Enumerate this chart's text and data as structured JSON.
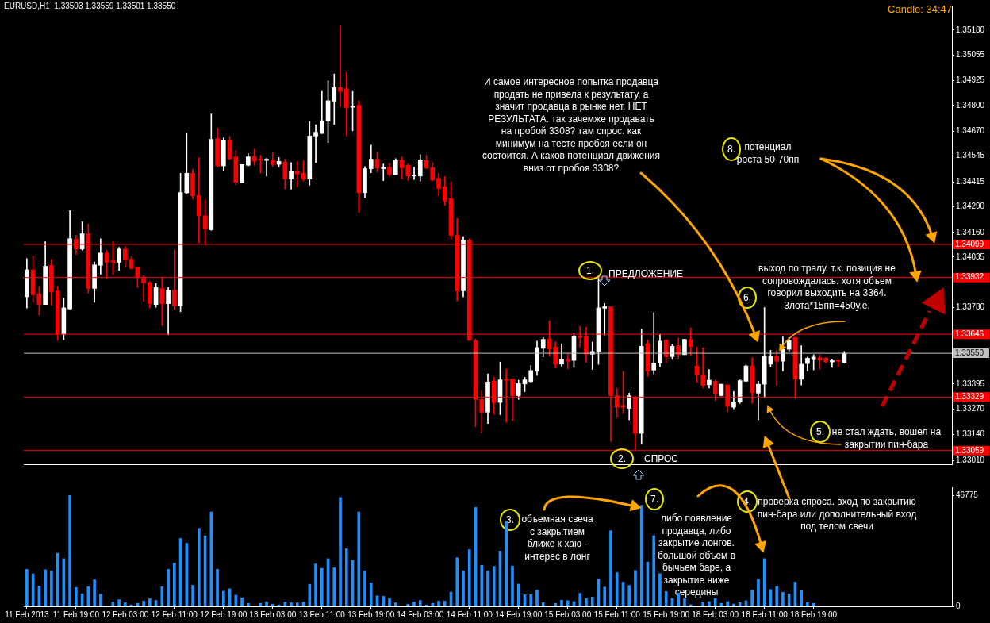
{
  "chart_data": [
    {
      "type": "candlestick",
      "title": "EURUSD,H1  1.33503 1.33559 1.33501 1.33550",
      "categories": [
        null,
        null,
        null,
        null,
        null,
        null,
        null,
        null,
        null,
        null,
        null,
        null,
        null,
        null,
        null,
        null,
        null,
        null,
        null,
        null,
        null,
        null,
        null,
        null,
        null,
        null,
        null,
        null,
        null,
        null,
        null,
        null,
        null,
        null,
        null,
        null,
        null,
        null,
        null,
        null,
        null,
        null,
        null,
        null,
        null,
        null,
        null,
        null,
        null,
        null,
        null,
        null,
        null,
        null,
        null,
        null,
        null,
        null,
        null,
        null,
        null,
        null,
        null,
        null,
        null,
        null,
        null,
        null,
        null,
        null,
        null,
        null,
        null,
        null,
        null,
        null,
        null,
        null,
        null,
        null,
        null,
        null,
        null,
        null,
        null,
        null,
        null,
        null,
        null,
        null,
        null,
        null,
        null,
        null,
        null,
        null,
        null,
        null,
        null,
        null,
        null,
        null,
        null,
        null,
        null,
        null,
        null,
        null,
        null,
        null,
        null,
        null,
        null,
        null,
        null,
        null,
        null,
        null,
        null,
        null,
        null,
        null,
        null,
        null,
        null,
        null,
        null,
        null,
        null,
        null,
        null,
        null,
        null,
        null,
        null,
        null,
        null,
        null,
        null,
        null,
        null,
        null,
        null,
        null,
        null,
        null,
        null,
        null,
        null,
        null,
        null
      ],
      "ohlc": [
        [
          1.33835,
          1.34028,
          1.33778,
          1.33971
        ],
        [
          1.33971,
          1.34042,
          1.33806,
          1.33845
        ],
        [
          1.3385,
          1.33888,
          1.33743,
          1.33796
        ],
        [
          1.33796,
          1.34113,
          1.33796,
          1.33989
        ],
        [
          1.33993,
          1.34024,
          1.33793,
          1.33861
        ],
        [
          1.33864,
          1.33888,
          1.33615,
          1.33646
        ],
        [
          1.33646,
          1.33828,
          1.33618,
          1.33779
        ],
        [
          1.33774,
          1.3427,
          1.33771,
          1.34128
        ],
        [
          1.34125,
          1.34145,
          1.34048,
          1.34076
        ],
        [
          1.34076,
          1.34213,
          1.3407,
          1.34153
        ],
        [
          1.34153,
          1.34202,
          1.33854,
          1.33877
        ],
        [
          1.33877,
          1.34011,
          1.33807,
          1.33996
        ],
        [
          1.33994,
          1.34128,
          1.33949,
          1.34056
        ],
        [
          1.34056,
          1.34068,
          1.33925,
          1.34009
        ],
        [
          1.34016,
          1.34113,
          1.33949,
          1.34009
        ],
        [
          1.34009,
          1.34085,
          1.33968,
          1.34076
        ],
        [
          1.34076,
          1.34089,
          1.33985,
          1.34021
        ],
        [
          1.34025,
          1.34039,
          1.33974,
          1.33978
        ],
        [
          1.33985,
          1.33985,
          1.33882,
          1.33934
        ],
        [
          1.33934,
          1.33942,
          1.33811,
          1.33905
        ],
        [
          1.33907,
          1.33911,
          1.33778,
          1.338
        ],
        [
          1.33796,
          1.33902,
          1.33782,
          1.33881
        ],
        [
          1.33877,
          1.33934,
          1.33689,
          1.338
        ],
        [
          1.338,
          1.33882,
          1.33643,
          1.33868
        ],
        [
          1.33868,
          1.34073,
          1.33771,
          1.33789
        ],
        [
          1.33789,
          1.34458,
          1.3376,
          1.34361
        ],
        [
          1.34359,
          1.3466,
          1.34356,
          1.34458
        ],
        [
          1.34458,
          1.34479,
          1.34327,
          1.34344
        ],
        [
          1.34345,
          1.34536,
          1.34106,
          1.34244
        ],
        [
          1.34244,
          1.34324,
          1.34099,
          1.34177
        ],
        [
          1.34173,
          1.34757,
          1.3417,
          1.34629
        ],
        [
          1.34633,
          1.34686,
          1.34489,
          1.34495
        ],
        [
          1.34495,
          1.34637,
          1.34469,
          1.34626
        ],
        [
          1.34626,
          1.34645,
          1.34527,
          1.34531
        ],
        [
          1.34541,
          1.34572,
          1.34401,
          1.34412
        ],
        [
          1.34409,
          1.34502,
          1.34409,
          1.34502
        ],
        [
          1.34498,
          1.34558,
          1.34495,
          1.34541
        ],
        [
          1.34541,
          1.3458,
          1.34498,
          1.34519
        ],
        [
          1.34529,
          1.34548,
          1.34459,
          1.34523
        ],
        [
          1.34523,
          1.34533,
          1.34444,
          1.34529
        ],
        [
          1.34526,
          1.34561,
          1.34492,
          1.34502
        ],
        [
          1.34503,
          1.34538,
          1.3449,
          1.34518
        ],
        [
          1.34515,
          1.34529,
          1.34378,
          1.34429
        ],
        [
          1.34429,
          1.34512,
          1.34378,
          1.34466
        ],
        [
          1.34466,
          1.34518,
          1.3439,
          1.34455
        ],
        [
          1.34458,
          1.34521,
          1.34419,
          1.34429
        ],
        [
          1.34429,
          1.34719,
          1.34398,
          1.34646
        ],
        [
          1.34646,
          1.34703,
          1.34512,
          1.34665
        ],
        [
          1.34659,
          1.34871,
          1.34659,
          1.34723
        ],
        [
          1.34721,
          1.34925,
          1.34612,
          1.34824
        ],
        [
          1.34822,
          1.34959,
          1.34704,
          1.3489
        ],
        [
          1.3489,
          1.35202,
          1.34794,
          1.34871
        ],
        [
          1.34885,
          1.34968,
          1.34647,
          1.3479
        ],
        [
          1.34791,
          1.34871,
          1.34672,
          1.34797
        ],
        [
          1.34801,
          1.34823,
          1.34261,
          1.3436
        ],
        [
          1.3436,
          1.34492,
          1.34335,
          1.34481
        ],
        [
          1.34481,
          1.346,
          1.34461,
          1.34529
        ],
        [
          1.34529,
          1.34565,
          1.34464,
          1.34484
        ],
        [
          1.34481,
          1.34505,
          1.34421,
          1.34487
        ],
        [
          1.34489,
          1.34508,
          1.34444,
          1.34452
        ],
        [
          1.34452,
          1.34532,
          1.34452,
          1.34523
        ],
        [
          1.34522,
          1.34541,
          1.34429,
          1.34486
        ],
        [
          1.34498,
          1.34504,
          1.34422,
          1.34444
        ],
        [
          1.34444,
          1.34489,
          1.34427,
          1.34449
        ],
        [
          1.34444,
          1.34552,
          1.34418,
          1.34526
        ],
        [
          1.34522,
          1.34549,
          1.34481,
          1.34484
        ],
        [
          1.34486,
          1.34512,
          1.34418,
          1.34424
        ],
        [
          1.34432,
          1.34458,
          1.34344,
          1.34381
        ],
        [
          1.3439,
          1.34441,
          1.34296,
          1.34318
        ],
        [
          1.3433,
          1.34415,
          1.34125,
          1.34145
        ],
        [
          1.34145,
          1.3423,
          1.33814,
          1.33865
        ],
        [
          1.33865,
          1.34139,
          1.33834,
          1.3412
        ],
        [
          1.3412,
          1.34128,
          1.33615,
          1.33615
        ],
        [
          1.33613,
          1.33622,
          1.33179,
          1.33317
        ],
        [
          1.33317,
          1.3336,
          1.33147,
          1.33253
        ],
        [
          1.33253,
          1.33446,
          1.33195,
          1.33405
        ],
        [
          1.33409,
          1.33429,
          1.33242,
          1.33302
        ],
        [
          1.33302,
          1.33506,
          1.3324,
          1.33416
        ],
        [
          1.33418,
          1.3347,
          1.33201,
          1.33413
        ],
        [
          1.3342,
          1.3342,
          1.3321,
          1.33336
        ],
        [
          1.33336,
          1.33414,
          1.33317,
          1.33397
        ],
        [
          1.33395,
          1.33429,
          1.33356,
          1.33416
        ],
        [
          1.33407,
          1.33488,
          1.33405,
          1.33463
        ],
        [
          1.33459,
          1.33611,
          1.33439,
          1.33579
        ],
        [
          1.33575,
          1.3363,
          1.33532,
          1.3362
        ],
        [
          1.33622,
          1.33714,
          1.33536,
          1.33572
        ],
        [
          1.33581,
          1.33607,
          1.33476,
          1.33495
        ],
        [
          1.33495,
          1.33598,
          1.33485,
          1.33521
        ],
        [
          1.33521,
          1.33549,
          1.33472,
          1.3351
        ],
        [
          1.33514,
          1.33652,
          1.33478,
          1.33633
        ],
        [
          1.33637,
          1.33687,
          1.33581,
          1.33629
        ],
        [
          1.33633,
          1.33682,
          1.33504,
          1.33545
        ],
        [
          1.33545,
          1.33607,
          1.33468,
          1.33559
        ],
        [
          1.33559,
          1.33934,
          1.33494,
          1.33779
        ],
        [
          1.33777,
          1.33801,
          1.33642,
          1.33785
        ],
        [
          1.33784,
          1.33784,
          1.33104,
          1.33336
        ],
        [
          1.33336,
          1.33372,
          1.33227,
          1.33278
        ],
        [
          1.33287,
          1.33459,
          1.33246,
          1.33278
        ],
        [
          1.33272,
          1.33349,
          1.33214,
          1.33336
        ],
        [
          1.3333,
          1.3333,
          1.33063,
          1.33146
        ],
        [
          1.33146,
          1.33672,
          1.33091,
          1.33585
        ],
        [
          1.33598,
          1.33617,
          1.33433,
          1.33459
        ],
        [
          1.33465,
          1.33755,
          1.33446,
          1.33501
        ],
        [
          1.33501,
          1.33646,
          1.33482,
          1.33611
        ],
        [
          1.33617,
          1.3362,
          1.33501,
          1.33533
        ],
        [
          1.33533,
          1.33594,
          1.33523,
          1.33585
        ],
        [
          1.33588,
          1.33626,
          1.33523,
          1.33543
        ],
        [
          1.33543,
          1.3362,
          1.33543,
          1.3362
        ],
        [
          1.3362,
          1.33678,
          1.3354,
          1.33584
        ],
        [
          1.33485,
          1.33581,
          1.33404,
          1.33442
        ],
        [
          1.33442,
          1.33579,
          1.33375,
          1.33388
        ],
        [
          1.33391,
          1.33468,
          1.33375,
          1.33414
        ],
        [
          1.33409,
          1.33416,
          1.33311,
          1.33345
        ],
        [
          1.33337,
          1.33394,
          1.33334,
          1.33394
        ],
        [
          1.3339,
          1.3339,
          1.33255,
          1.33282
        ],
        [
          1.33278,
          1.33357,
          1.3327,
          1.33305
        ],
        [
          1.33305,
          1.33416,
          1.33297,
          1.33412
        ],
        [
          1.33409,
          1.33491,
          1.33409,
          1.33486
        ],
        [
          1.33486,
          1.33528,
          1.33297,
          1.33352
        ],
        [
          1.33349,
          1.33409,
          1.33215,
          1.33394
        ],
        [
          1.33394,
          1.33781,
          1.33327,
          1.33536
        ],
        [
          1.33495,
          1.33565,
          1.33483,
          1.33536
        ],
        [
          1.33536,
          1.33565,
          1.33387,
          1.3351
        ],
        [
          1.3351,
          1.33632,
          1.33461,
          1.3357
        ],
        [
          1.3357,
          1.33629,
          1.33561,
          1.33615
        ],
        [
          1.33629,
          1.33632,
          1.33322,
          1.33419
        ],
        [
          1.33419,
          1.33588,
          1.3339,
          1.33495
        ],
        [
          1.33498,
          1.33531,
          1.33461,
          1.33525
        ],
        [
          1.33521,
          1.33543,
          1.33466,
          1.33531
        ],
        [
          1.33528,
          1.33543,
          1.33469,
          1.33516
        ],
        [
          1.33525,
          1.33528,
          1.33501,
          1.33506
        ],
        [
          1.33506,
          1.33521,
          1.33479,
          1.33513
        ],
        [
          1.33516,
          1.33516,
          1.33483,
          1.3351
        ],
        [
          1.33503,
          1.33559,
          1.33501,
          1.3355
        ],
        null,
        null,
        null,
        null,
        null,
        null,
        null,
        null,
        null,
        null,
        null,
        null,
        null,
        null,
        null,
        null,
        null
      ],
      "colors": [
        "#ffffff",
        "#ff0000",
        "#ff0000",
        "#ffffff",
        "#ff0000",
        "#ff0000",
        "#ffffff",
        "#ffffff",
        "#ff0000",
        "#ffffff",
        "#ff0000",
        "#ffffff",
        "#ffffff",
        "#ff0000",
        "#ff0000",
        "#ffffff",
        "#ff0000",
        "#ff0000",
        "#ff0000",
        "#ff0000",
        "#ff0000",
        "#ffffff",
        "#ff0000",
        "#ffffff",
        "#ff0000",
        "#ffffff",
        "#ffffff",
        "#ff0000",
        "#ff0000",
        "#ff0000",
        "#ffffff",
        "#ff0000",
        "#ffffff",
        "#ff0000",
        "#ff0000",
        "#ffffff",
        "#ffffff",
        "#ff0000",
        "#ff0000",
        "#ffffff",
        "#ff0000",
        "#ffffff",
        "#ff0000",
        "#ffffff",
        "#ff0000",
        "#ff0000",
        "#ffffff",
        "#ffffff",
        "#ffffff",
        "#ffffff",
        "#ffffff",
        "#ff0000",
        "#ff0000",
        "#ffffff",
        "#ff0000",
        "#ffffff",
        "#ffffff",
        "#ff0000",
        "#ffffff",
        "#ff0000",
        "#ffffff",
        "#ff0000",
        "#ff0000",
        "#ffffff",
        "#ffffff",
        "#ff0000",
        "#ff0000",
        "#ff0000",
        "#ff0000",
        "#ff0000",
        "#ff0000",
        "#ffffff",
        "#ff0000",
        "#ff0000",
        "#ff0000",
        "#ffffff",
        "#ff0000",
        "#ffffff",
        "#ff0000",
        "#ff0000",
        "#ffffff",
        "#ffffff",
        "#ffffff",
        "#ffffff",
        "#ffffff",
        "#ff0000",
        "#ff0000",
        "#ffffff",
        "#ff0000",
        "#ffffff",
        "#ff0000",
        "#ff0000",
        "#ffffff",
        "#ffffff",
        "#ffffff",
        "#ff0000",
        "#ff0000",
        "#ff0000",
        "#ffffff",
        "#ff0000",
        "#ffffff",
        "#ff0000",
        "#ffffff",
        "#ffffff",
        "#ff0000",
        "#ffffff",
        "#ff0000",
        "#ffffff",
        "#ff0000",
        "#ff0000",
        "#ff0000",
        "#ffffff",
        "#ff0000",
        "#ffffff",
        "#ff0000",
        "#ffffff",
        "#ffffff",
        "#ffffff",
        "#ff0000",
        "#ffffff",
        "#ffffff",
        "#ffffff",
        "#ff0000",
        "#ffffff",
        "#ffffff",
        "#ff0000",
        "#ffffff",
        "#ffffff",
        "#ffffff",
        "#ff0000",
        "#ff0000",
        "#ffffff",
        "#ff0000",
        "#ffffff",
        null,
        null,
        null,
        null,
        null,
        null,
        null,
        null,
        null,
        null,
        null,
        null,
        null,
        null,
        null,
        null,
        null
      ],
      "ylim": [
        1.3299,
        1.353
      ],
      "yticks": [
        {
          "value": 1.3518,
          "label": "1.35180"
        },
        1.35055,
        1.34925,
        {
          "value": 1.348,
          "label": "1.34800"
        },
        {
          "value": 1.3467,
          "label": "1.34670"
        },
        1.34545,
        1.34415,
        {
          "value": 1.3429,
          "label": "1.34290"
        },
        {
          "value": 1.3416,
          "label": "1.34160"
        },
        1.34035,
        {
          "value": 1.3378,
          "label": "1.33780"
        },
        1.33395,
        {
          "value": 1.3327,
          "label": "1.33270"
        },
        {
          "value": 1.3314,
          "label": "1.33140"
        },
        {
          "value": 1.3301,
          "label": "1.33010"
        }
      ],
      "ref_lines": [
        {
          "axis": "y",
          "value": 1.34099,
          "label": "1.34099",
          "color": "#ff0000"
        },
        {
          "axis": "y",
          "value": 1.33932,
          "label": "1.33932",
          "color": "#ff0000"
        },
        {
          "axis": "y",
          "value": 1.33646,
          "label": "1.33646",
          "color": "#ff0000"
        },
        {
          "axis": "y",
          "value": 1.3355,
          "label": "1.33550",
          "color": "#c0c0c0"
        },
        {
          "axis": "y",
          "value": 1.33329,
          "label": "1.33329",
          "color": "#ff0000"
        },
        {
          "axis": "y",
          "value": 1.33059,
          "label": "1.33059",
          "color": "#ff0000"
        }
      ],
      "annotations": [
        "И самое интересное попытка продавца\nпродать не привела к результату. а\nзначит продавца в рынке нет. НЕТ\nРЕЗУЛЬТАТА. так зачемже продавать\nна пробой 3308? там спрос. как\nминимум на тесте пробоя если он\nсостоится. А каков потенциал движения\nвниз от пробоя 3308?",
        "1.",
        "ПРЕДЛОЖЕНИЕ",
        "2.",
        "СПРОС",
        "3.",
        "объемная свеча\nс закрытием\nближе к хаю -\nинтерес в лонг",
        "4.",
        "проверка спроса. вход по закрытию\nпин-бара или дополнительный вход\nпод телом свечи",
        "5.",
        "не стал ждать, вошел на\nзакрытии пин-бара",
        "6.",
        "выход по тралу, т.к. позиция не\nсопровождалась. хотя объем\nговорил выходить на 3364.\n3лота*15пп=450у.е.",
        "7.",
        "либо появление\nпродавца, либо\nзакрытие лонгов.\nбольшой объем в\nбычьем баре, а\nзакрытие ниже\nсередины",
        "8.",
        "потенциал\nроста 50-70пп",
        "Candle:  34:47"
      ]
    },
    {
      "type": "bar",
      "color": "#1e90ff",
      "categories": [
        "11 Feb 2013",
        null,
        null,
        null,
        null,
        null,
        null,
        null,
        "11 Feb 19:00",
        null,
        null,
        null,
        null,
        null,
        null,
        null,
        "12 Feb 03:00",
        null,
        null,
        null,
        null,
        null,
        null,
        null,
        "12 Feb 11:00",
        null,
        null,
        null,
        null,
        null,
        null,
        null,
        "12 Feb 19:00",
        null,
        null,
        null,
        null,
        null,
        null,
        null,
        "13 Feb 03:00",
        null,
        null,
        null,
        null,
        null,
        null,
        null,
        "13 Feb 11:00",
        null,
        null,
        null,
        null,
        null,
        null,
        null,
        "13 Feb 19:00",
        null,
        null,
        null,
        null,
        null,
        null,
        null,
        "14 Feb 03:00",
        null,
        null,
        null,
        null,
        null,
        null,
        null,
        "14 Feb 11:00",
        null,
        null,
        null,
        null,
        null,
        null,
        null,
        "14 Feb 19:00",
        null,
        null,
        null,
        null,
        null,
        null,
        null,
        "15 Feb 03:00",
        null,
        null,
        null,
        null,
        null,
        null,
        null,
        "15 Feb 11:00",
        null,
        null,
        null,
        null,
        null,
        null,
        null,
        "15 Feb 19:00",
        null,
        null,
        null,
        null,
        null,
        null,
        null,
        "18 Feb 03:00",
        null,
        null,
        null,
        null,
        null,
        null,
        null,
        "18 Feb 11:00",
        null,
        null,
        null,
        null,
        null,
        null,
        null,
        "18 Feb 19:00",
        null,
        null,
        null,
        null,
        null,
        null,
        null,
        null,
        null,
        null,
        null,
        null,
        null,
        null,
        null,
        null,
        null,
        null,
        null,
        null,
        null,
        null
      ],
      "values": [
        15600,
        13700,
        8500,
        15400,
        15000,
        22400,
        20100,
        46775,
        8000,
        5300,
        8300,
        11200,
        5100,
        null,
        1900,
        2800,
        1500,
        600,
        1300,
        2200,
        3200,
        2500,
        8300,
        15600,
        18200,
        28600,
        26600,
        8900,
        32900,
        29700,
        39800,
        15600,
        6400,
        7400,
        4700,
        3600,
        1300,
        null,
        1300,
        1900,
        900,
        600,
        1900,
        1500,
        1500,
        1900,
        9300,
        17900,
        16000,
        20100,
        16300,
        45900,
        24300,
        19400,
        39800,
        15000,
        9900,
        4400,
        4200,
        3200,
        1500,
        null,
        900,
        1900,
        2500,
        600,
        1300,
        2200,
        2200,
        6000,
        20500,
        15000,
        23900,
        41700,
        17300,
        15000,
        16900,
        23300,
        35700,
        17000,
        9400,
        4900,
        4900,
        6800,
        1600,
        null,
        1300,
        2600,
        2400,
        2000,
        5500,
        3300,
        3900,
        11500,
        8100,
        31900,
        14200,
        10200,
        8800,
        15100,
        42600,
        18700,
        29800,
        13800,
        6200,
        3300,
        5500,
        3300,
        700,
        null,
        1600,
        2000,
        3300,
        1300,
        2000,
        1000,
        1600,
        2400,
        6800,
        11400,
        20100,
        7100,
        8400,
        5900,
        5200,
        10200,
        6600,
        1600,
        1300,
        null,
        null,
        null,
        null,
        null,
        null,
        null,
        null,
        null,
        null,
        null,
        null,
        null,
        null,
        null,
        null,
        null,
        null,
        null,
        null,
        null,
        null
      ],
      "ylim": [
        0,
        50200
      ],
      "yticks": [
        0,
        46775
      ]
    }
  ]
}
